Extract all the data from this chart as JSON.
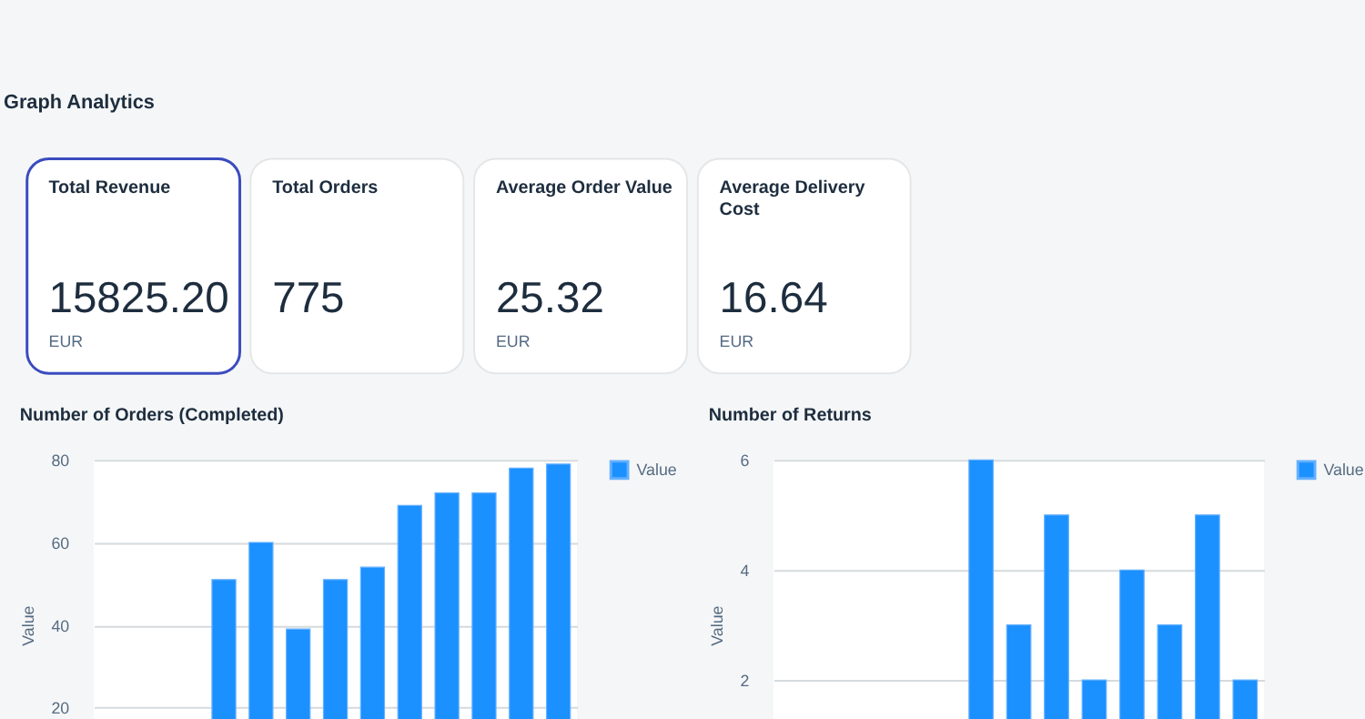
{
  "chart_data": [
    {
      "type": "other",
      "title": "Graph Analytics"
    },
    {
      "type": "other",
      "title": "Total Revenue",
      "annotations": [
        "15825.20",
        "EUR"
      ]
    },
    {
      "type": "other",
      "title": "Total Orders",
      "annotations": [
        "775"
      ]
    },
    {
      "type": "other",
      "title": "Average Order Value",
      "annotations": [
        "25.32",
        "EUR"
      ]
    },
    {
      "type": "other",
      "title": "Average Delivery Cost",
      "annotations": [
        "16.64",
        "EUR"
      ]
    },
    {
      "type": "bar",
      "title": "Number of Orders (Completed)",
      "ylabel": "Value",
      "categories": [
        null,
        null,
        null,
        null,
        null,
        null,
        null,
        null,
        null,
        null,
        null,
        null,
        null
      ],
      "series": [
        {
          "name": "Value",
          "color": "#1b90ff",
          "values": [
            null,
            null,
            null,
            51,
            60,
            39,
            51,
            54,
            69,
            72,
            72,
            78,
            79
          ]
        }
      ],
      "ylim": [
        0,
        80
      ],
      "yticks": [
        20,
        40,
        60,
        80
      ],
      "grid": "y",
      "legend": "top right",
      "tick_labels": "y"
    },
    {
      "type": "bar",
      "title": "Number of Returns",
      "ylabel": "Value",
      "categories": [
        null,
        null,
        null,
        null,
        null,
        null,
        null,
        null,
        null,
        null,
        null,
        null,
        null
      ],
      "series": [
        {
          "name": "Value",
          "color": "#1b90ff",
          "values": [
            null,
            null,
            null,
            null,
            null,
            6,
            3,
            5,
            2,
            4,
            3,
            5,
            2
          ]
        }
      ],
      "ylim": [
        0,
        6
      ],
      "yticks": [
        2,
        4,
        6
      ],
      "grid": "y",
      "legend": "top right",
      "tick_labels": "y"
    }
  ]
}
